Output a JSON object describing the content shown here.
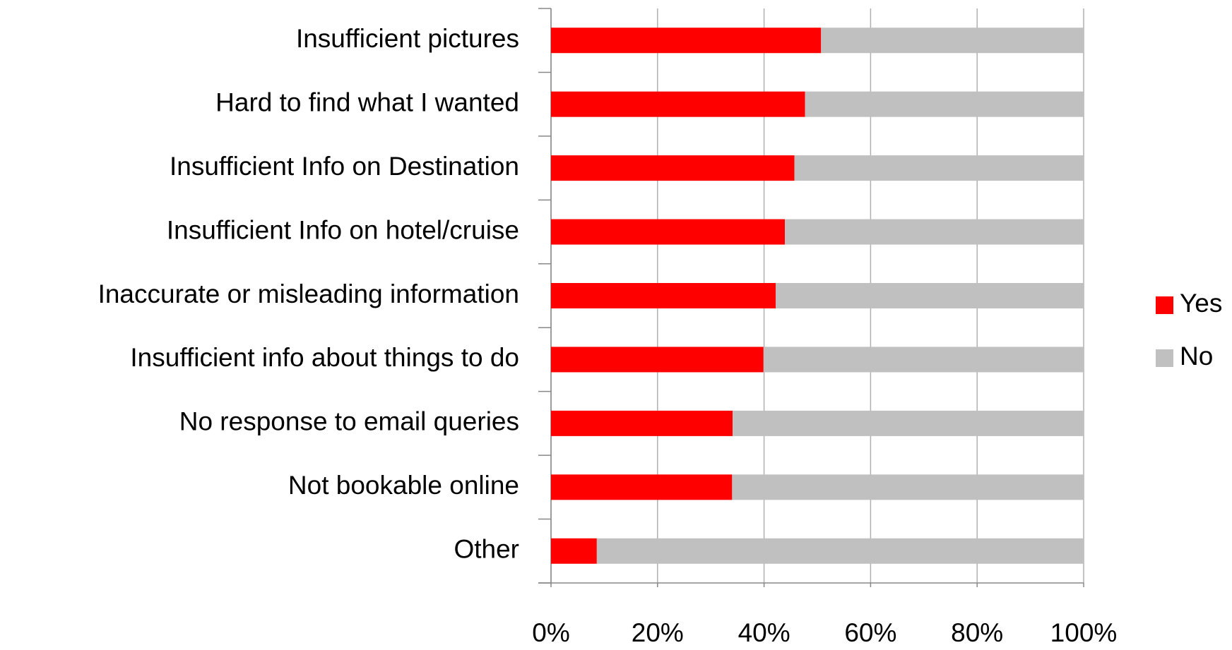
{
  "chart_data": {
    "type": "bar_stacked_horizontal",
    "categories": [
      "Insufficient pictures",
      "Hard to find what I wanted",
      "Insufficient Info on Destination",
      "Insufficient Info on hotel/cruise",
      "Inaccurate or misleading information",
      "Insufficient info about things to do",
      "No response to email queries",
      "Not bookable online",
      "Other"
    ],
    "series": [
      {
        "name": "Yes",
        "color": "#ff0000",
        "values": [
          50.7,
          47.7,
          45.7,
          43.9,
          42.2,
          39.9,
          34.1,
          34.0,
          8.6
        ]
      },
      {
        "name": "No",
        "color": "#c0c0c0",
        "values": [
          49.3,
          52.3,
          54.3,
          56.1,
          57.8,
          60.1,
          65.9,
          66.0,
          91.4
        ]
      }
    ],
    "xlim": [
      0,
      100
    ],
    "xticks": [
      {
        "value": 0,
        "label": "0%"
      },
      {
        "value": 20,
        "label": "20%"
      },
      {
        "value": 40,
        "label": "40%"
      },
      {
        "value": 60,
        "label": "60%"
      },
      {
        "value": 80,
        "label": "80%"
      },
      {
        "value": 100,
        "label": "100%"
      }
    ],
    "grid": true,
    "legend": "right"
  }
}
